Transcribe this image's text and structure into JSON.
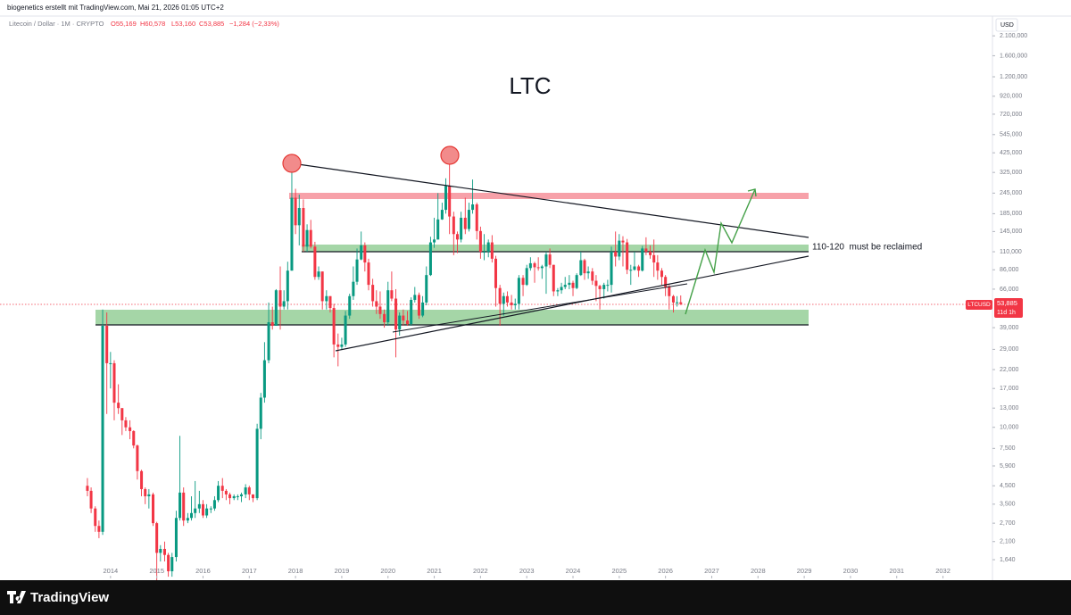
{
  "header": {
    "credit": "biogenetics erstellt mit TradingView.com, Mai 21, 2026 01:05 UTC+2",
    "brand": "TradingView"
  },
  "chart_data": {
    "type": "candlestick",
    "title": "LTC",
    "legend": {
      "symbol": "Litecoin / Dollar · 1M · CRYPTO",
      "ohlc": [
        "O55,169",
        "H60,578",
        "L53,160",
        "C53,885",
        "−1,284 (−2,33%)"
      ]
    },
    "currency": "USD",
    "annotation": "110-120  must be reclaimed",
    "price_tag": {
      "symbol": "LTCUSD",
      "value": "53,885",
      "countdown": "11d 1h"
    },
    "up_color": "#089981",
    "down_color": "#f23645",
    "log_scale": true,
    "xlim": [
      2011.61,
      2033.07
    ],
    "xticks": [
      2014,
      2015,
      2016,
      2017,
      2018,
      2019,
      2020,
      2021,
      2022,
      2023,
      2024,
      2025,
      2026,
      2027,
      2028,
      2029,
      2030,
      2031,
      2032
    ],
    "ylim": [
      1.27,
      2684
    ],
    "yticks": [
      {
        "value": 2100,
        "label": "2.100,000"
      },
      {
        "value": 1600,
        "label": "1.600,000"
      },
      {
        "value": 1200,
        "label": "1.200,000"
      },
      {
        "value": 920,
        "label": "920,000"
      },
      {
        "value": 720,
        "label": "720,000"
      },
      {
        "value": 545,
        "label": "545,000"
      },
      {
        "value": 425,
        "label": "425,000"
      },
      {
        "value": 325,
        "label": "325,000"
      },
      {
        "value": 245,
        "label": "245,000"
      },
      {
        "value": 185,
        "label": "185,000"
      },
      {
        "value": 145,
        "label": "145,000"
      },
      {
        "value": 110,
        "label": "110,000"
      },
      {
        "value": 86,
        "label": "86,000"
      },
      {
        "value": 66,
        "label": "66,000"
      },
      {
        "value": 39,
        "label": "39,000"
      },
      {
        "value": 29,
        "label": "29,000"
      },
      {
        "value": 22,
        "label": "22,000"
      },
      {
        "value": 17,
        "label": "17,000"
      },
      {
        "value": 13,
        "label": "13,000"
      },
      {
        "value": 10,
        "label": "10,000"
      },
      {
        "value": 7.5,
        "label": "7,500"
      },
      {
        "value": 5.9,
        "label": "5,900"
      },
      {
        "value": 4.5,
        "label": "4,500"
      },
      {
        "value": 3.5,
        "label": "3,500"
      },
      {
        "value": 2.7,
        "label": "2,700"
      },
      {
        "value": 2.1,
        "label": "2,100"
      },
      {
        "value": 1.64,
        "label": "1,640"
      }
    ],
    "x": [
      2013.5,
      2013.58,
      2013.67,
      2013.75,
      2013.83,
      2013.92,
      2014,
      2014.08,
      2014.17,
      2014.25,
      2014.33,
      2014.42,
      2014.5,
      2014.58,
      2014.67,
      2014.75,
      2014.83,
      2014.92,
      2015,
      2015.08,
      2015.17,
      2015.25,
      2015.33,
      2015.42,
      2015.5,
      2015.58,
      2015.67,
      2015.75,
      2015.83,
      2015.92,
      2016,
      2016.08,
      2016.17,
      2016.25,
      2016.33,
      2016.42,
      2016.5,
      2016.58,
      2016.67,
      2016.75,
      2016.83,
      2016.92,
      2017,
      2017.08,
      2017.17,
      2017.25,
      2017.33,
      2017.42,
      2017.5,
      2017.58,
      2017.67,
      2017.75,
      2017.83,
      2017.92,
      2018,
      2018.08,
      2018.17,
      2018.25,
      2018.33,
      2018.42,
      2018.5,
      2018.58,
      2018.67,
      2018.75,
      2018.83,
      2018.92,
      2019,
      2019.08,
      2019.17,
      2019.25,
      2019.33,
      2019.42,
      2019.5,
      2019.58,
      2019.67,
      2019.75,
      2019.83,
      2019.92,
      2020,
      2020.08,
      2020.17,
      2020.25,
      2020.33,
      2020.42,
      2020.5,
      2020.58,
      2020.67,
      2020.75,
      2020.83,
      2020.92,
      2021,
      2021.08,
      2021.17,
      2021.25,
      2021.33,
      2021.42,
      2021.5,
      2021.58,
      2021.67,
      2021.75,
      2021.83,
      2021.92,
      2022,
      2022.08,
      2022.17,
      2022.25,
      2022.33,
      2022.42,
      2022.5,
      2022.58,
      2022.67,
      2022.75,
      2022.83,
      2022.92,
      2023,
      2023.08,
      2023.17,
      2023.25,
      2023.33,
      2023.42,
      2023.5,
      2023.58,
      2023.67,
      2023.75,
      2023.83,
      2023.92,
      2024,
      2024.08,
      2024.17,
      2024.25,
      2024.33,
      2024.42,
      2024.5,
      2024.58,
      2024.67,
      2024.75,
      2024.83,
      2024.92,
      2025,
      2025.08,
      2025.17,
      2025.25,
      2025.33,
      2025.42,
      2025.5,
      2025.58,
      2025.67,
      2025.75,
      2025.83,
      2025.92,
      2026,
      2026.08,
      2026.17,
      2026.25,
      2026.33
    ],
    "open": [
      4.5,
      4.2,
      3.3,
      2.6,
      2.4,
      40,
      24,
      24,
      14,
      13,
      11,
      10,
      9.5,
      7.8,
      5.5,
      4.3,
      3.9,
      4,
      2.7,
      1.8,
      1.9,
      1.75,
      1.4,
      1.7,
      2.9,
      4.1,
      2.8,
      2.9,
      3.1,
      3.3,
      3.5,
      3,
      3.3,
      3.3,
      3.7,
      4.5,
      4.2,
      4,
      3.8,
      3.9,
      3.9,
      4,
      4.4,
      4,
      3.8,
      9.8,
      15,
      25,
      42,
      40,
      65,
      52,
      56,
      85,
      230,
      158,
      200,
      118,
      148,
      118,
      78,
      84,
      56,
      60,
      51,
      31,
      30,
      31,
      46,
      60,
      73,
      99,
      120,
      95,
      70,
      56,
      52,
      47,
      42,
      65,
      58,
      38,
      46,
      43,
      41,
      57,
      61,
      46,
      55,
      80,
      125,
      130,
      171,
      195,
      270,
      178,
      140,
      130,
      175,
      150,
      195,
      210,
      146,
      110,
      110,
      125,
      100,
      67,
      54,
      60,
      55,
      53,
      54,
      77,
      70,
      88,
      94,
      89,
      88,
      90,
      106,
      92,
      64,
      65,
      68,
      70,
      72,
      67,
      80,
      98,
      82,
      84,
      74,
      69,
      66,
      70,
      70,
      110,
      103,
      128,
      125,
      86,
      86,
      90,
      85,
      115,
      110,
      105,
      95,
      85,
      78,
      68,
      60,
      55,
      55.169
    ],
    "high": [
      5,
      4.4,
      3.4,
      2.8,
      50,
      48,
      28,
      25,
      18,
      13,
      11.5,
      11,
      9.6,
      7.9,
      5.6,
      4.4,
      4.3,
      4.1,
      2.75,
      2,
      2.1,
      1.8,
      1.8,
      3.2,
      8.9,
      4.4,
      3.1,
      3.9,
      4.8,
      4.2,
      3.7,
      3.5,
      3.4,
      3.9,
      4.8,
      5,
      4.3,
      4.1,
      4,
      4,
      4.1,
      4.6,
      4.5,
      4,
      10.5,
      16,
      32,
      55,
      52,
      66,
      90,
      65,
      96,
      375,
      260,
      240,
      225,
      160,
      170,
      126,
      90,
      84,
      65,
      60,
      54,
      36,
      34,
      49,
      62,
      90,
      115,
      145,
      125,
      100,
      76,
      65,
      64,
      50,
      73,
      84,
      66,
      48,
      50,
      49,
      59,
      68,
      63,
      60,
      90,
      135,
      175,
      245,
      215,
      300,
      410,
      190,
      145,
      190,
      230,
      215,
      295,
      215,
      155,
      140,
      130,
      138,
      104,
      70,
      63,
      64,
      61,
      58,
      80,
      80,
      92,
      102,
      96,
      102,
      92,
      110,
      115,
      92,
      67,
      72,
      78,
      80,
      74,
      82,
      110,
      100,
      90,
      88,
      80,
      70,
      72,
      75,
      118,
      145,
      140,
      136,
      131,
      92,
      110,
      92,
      119,
      134,
      120,
      130,
      105,
      88,
      80,
      70,
      61,
      60,
      60.578
    ],
    "low": [
      3.9,
      3.1,
      2.4,
      2.2,
      2.3,
      12,
      17,
      11,
      12,
      9,
      9.5,
      8.5,
      7.5,
      4.9,
      3.9,
      3.5,
      3.3,
      2.6,
      1.1,
      1.6,
      1.6,
      1.3,
      1.3,
      1.6,
      2.8,
      2.6,
      2.7,
      2.8,
      2.9,
      3.1,
      2.9,
      2.9,
      3.1,
      3.2,
      3.6,
      3.8,
      3.7,
      3.5,
      3.7,
      3.7,
      3.6,
      3.8,
      3.7,
      3.6,
      3.7,
      8.5,
      14,
      24,
      38,
      40,
      38,
      50,
      50,
      85,
      140,
      120,
      110,
      110,
      115,
      75,
      75,
      50,
      50,
      48,
      26,
      23,
      29,
      30,
      44,
      57,
      70,
      98,
      84,
      65,
      52,
      47,
      44,
      39,
      40,
      56,
      26,
      35,
      40,
      40,
      40,
      55,
      44,
      45,
      53,
      79,
      116,
      130,
      170,
      185,
      140,
      105,
      108,
      125,
      140,
      145,
      185,
      130,
      100,
      98,
      102,
      95,
      52,
      40,
      46,
      52,
      50,
      50,
      50,
      60,
      69,
      85,
      72,
      85,
      76,
      62,
      88,
      60,
      60,
      62,
      66,
      66,
      60,
      66,
      79,
      75,
      76,
      70,
      56,
      50,
      58,
      64,
      63,
      90,
      98,
      90,
      81,
      70,
      85,
      78,
      84,
      105,
      100,
      78,
      75,
      70,
      60,
      50,
      48,
      52,
      53.16
    ],
    "close": [
      4.2,
      3.3,
      2.6,
      2.4,
      40,
      24,
      24,
      14,
      13,
      11,
      10,
      9.5,
      7.8,
      5.5,
      4.3,
      3.9,
      4,
      2.7,
      1.8,
      1.9,
      1.75,
      1.4,
      1.7,
      2.9,
      4.1,
      2.8,
      2.9,
      3.1,
      3.3,
      3.5,
      3,
      3.3,
      3.3,
      3.7,
      4.5,
      4.2,
      4,
      3.8,
      3.9,
      3.9,
      4,
      4.4,
      4,
      3.8,
      9.8,
      15,
      25,
      42,
      40,
      65,
      52,
      56,
      85,
      230,
      158,
      200,
      118,
      148,
      118,
      78,
      84,
      56,
      60,
      51,
      31,
      30,
      31,
      46,
      60,
      73,
      99,
      120,
      95,
      70,
      56,
      52,
      47,
      42,
      65,
      58,
      38,
      46,
      43,
      41,
      57,
      61,
      46,
      55,
      80,
      125,
      130,
      171,
      195,
      270,
      178,
      140,
      130,
      175,
      150,
      195,
      210,
      146,
      110,
      110,
      125,
      100,
      67,
      54,
      60,
      55,
      53,
      54,
      77,
      70,
      88,
      94,
      89,
      88,
      90,
      106,
      92,
      64,
      65,
      68,
      70,
      72,
      67,
      80,
      98,
      82,
      84,
      74,
      69,
      66,
      70,
      70,
      110,
      103,
      128,
      125,
      86,
      86,
      90,
      85,
      115,
      110,
      105,
      95,
      85,
      78,
      68,
      60,
      55,
      55.169,
      53.885
    ]
  }
}
